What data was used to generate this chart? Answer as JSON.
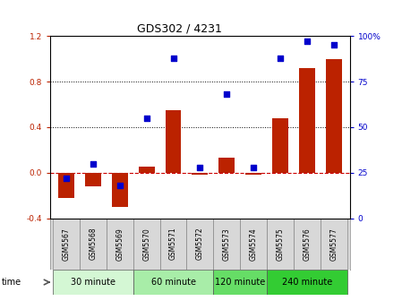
{
  "title": "GDS302 / 4231",
  "samples": [
    "GSM5567",
    "GSM5568",
    "GSM5569",
    "GSM5570",
    "GSM5571",
    "GSM5572",
    "GSM5573",
    "GSM5574",
    "GSM5575",
    "GSM5576",
    "GSM5577"
  ],
  "log_ratio": [
    -0.22,
    -0.12,
    -0.3,
    0.05,
    0.55,
    -0.02,
    0.13,
    -0.02,
    0.48,
    0.92,
    1.0
  ],
  "percentile": [
    22,
    30,
    18,
    55,
    88,
    28,
    68,
    28,
    88,
    97,
    95
  ],
  "groups": [
    {
      "label": "30 minute",
      "start": 0,
      "end": 3,
      "color": "#d4f7d4"
    },
    {
      "label": "60 minute",
      "start": 3,
      "end": 6,
      "color": "#a8eda8"
    },
    {
      "label": "120 minute",
      "start": 6,
      "end": 8,
      "color": "#66dd66"
    },
    {
      "label": "240 minute",
      "start": 8,
      "end": 11,
      "color": "#33cc33"
    }
  ],
  "bar_color": "#bb2200",
  "dot_color": "#0000cc",
  "zero_line_color": "#cc0000",
  "grid_color": "black",
  "ylim_left": [
    -0.4,
    1.2
  ],
  "ylim_right": [
    0,
    100
  ],
  "yticks_left": [
    -0.4,
    0.0,
    0.4,
    0.8,
    1.2
  ],
  "yticks_right": [
    0,
    25,
    50,
    75,
    100
  ],
  "background_color": "#ffffff",
  "plot_bg_color": "#ffffff",
  "sample_bg_color": "#d8d8d8",
  "title_fontsize": 9,
  "tick_fontsize": 6.5,
  "sample_fontsize": 5.5,
  "group_fontsize": 7,
  "legend_fontsize": 7
}
